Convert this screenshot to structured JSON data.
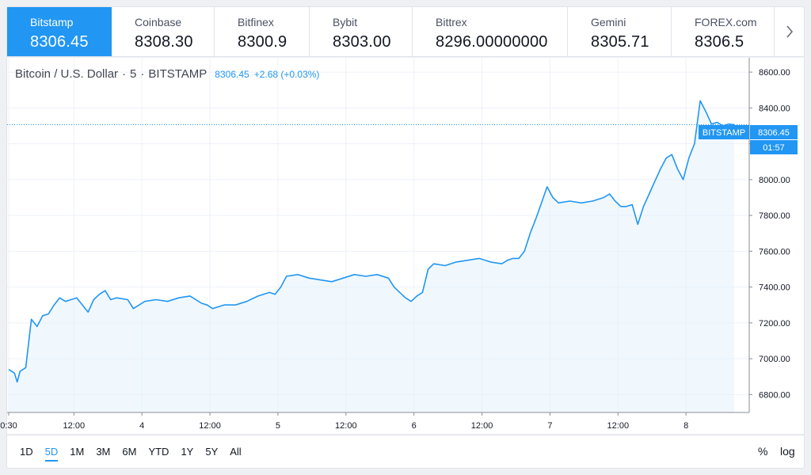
{
  "exchanges": [
    {
      "name": "Bitstamp",
      "price": "8306.45",
      "active": true
    },
    {
      "name": "Coinbase",
      "price": "8308.30",
      "active": false
    },
    {
      "name": "Bitfinex",
      "price": "8300.9",
      "active": false
    },
    {
      "name": "Bybit",
      "price": "8303.00",
      "active": false
    },
    {
      "name": "Bittrex",
      "price": "8296.00000000",
      "active": false
    },
    {
      "name": "Gemini",
      "price": "8305.71",
      "active": false
    },
    {
      "name": "FOREX.com",
      "price": "8306.5",
      "active": false
    }
  ],
  "next_icon": "chevron-right-icon",
  "legend": {
    "symbol": "Bitcoin / U.S. Dollar",
    "interval": "5",
    "exchange": "BITSTAMP",
    "separator": "·",
    "last": "8306.45",
    "change": "+2.68 (+0.03%)"
  },
  "price_label": {
    "exchange": "BITSTAMP",
    "value": "8306.45",
    "countdown": "01:57"
  },
  "range_buttons": [
    {
      "label": "1D",
      "active": false
    },
    {
      "label": "5D",
      "active": true
    },
    {
      "label": "1M",
      "active": false
    },
    {
      "label": "3M",
      "active": false
    },
    {
      "label": "6M",
      "active": false
    },
    {
      "label": "YTD",
      "active": false
    },
    {
      "label": "1Y",
      "active": false
    },
    {
      "label": "5Y",
      "active": false
    },
    {
      "label": "All",
      "active": false
    }
  ],
  "toolbar": {
    "percent_label": "%",
    "log_label": "log"
  },
  "colors": {
    "accent": "#2196f3",
    "line": "#2196f3",
    "area": "#e3f2fd",
    "grid": "#f0f3fa"
  },
  "chart_data": {
    "type": "area",
    "title": "",
    "xlabel": "",
    "ylabel": "",
    "ylim": [
      6700,
      8680
    ],
    "grid": true,
    "y_ticks": [
      "6800.00",
      "7000.00",
      "7200.00",
      "7400.00",
      "7600.00",
      "7800.00",
      "8000.00",
      "8200.00",
      "8400.00",
      "8600.00"
    ],
    "x_ticks": [
      {
        "label": "0:30",
        "t": 0
      },
      {
        "label": "12:00",
        "t": 11.5
      },
      {
        "label": "4",
        "t": 23.5
      },
      {
        "label": "12:00",
        "t": 35.5
      },
      {
        "label": "5",
        "t": 47.5
      },
      {
        "label": "12:00",
        "t": 59.5
      },
      {
        "label": "6",
        "t": 71.5
      },
      {
        "label": "12:00",
        "t": 83.5
      },
      {
        "label": "7",
        "t": 95.5
      },
      {
        "label": "12:00",
        "t": 107.5
      },
      {
        "label": "8",
        "t": 119.5
      }
    ],
    "x_max_t": 128,
    "last_value": 8306.45,
    "series": [
      {
        "values": [
          [
            0,
            6940
          ],
          [
            1,
            6920
          ],
          [
            1.5,
            6870
          ],
          [
            2,
            6930
          ],
          [
            3,
            6950
          ],
          [
            4,
            7220
          ],
          [
            5,
            7180
          ],
          [
            6,
            7240
          ],
          [
            7,
            7250
          ],
          [
            8,
            7300
          ],
          [
            9,
            7340
          ],
          [
            10,
            7320
          ],
          [
            11,
            7330
          ],
          [
            12,
            7340
          ],
          [
            14,
            7260
          ],
          [
            15,
            7330
          ],
          [
            16,
            7360
          ],
          [
            17,
            7380
          ],
          [
            18,
            7330
          ],
          [
            19,
            7340
          ],
          [
            21,
            7330
          ],
          [
            22,
            7280
          ],
          [
            24,
            7320
          ],
          [
            26,
            7330
          ],
          [
            28,
            7320
          ],
          [
            30,
            7340
          ],
          [
            32,
            7350
          ],
          [
            33,
            7330
          ],
          [
            34,
            7310
          ],
          [
            35,
            7300
          ],
          [
            36,
            7280
          ],
          [
            38,
            7300
          ],
          [
            40,
            7300
          ],
          [
            42,
            7320
          ],
          [
            44,
            7350
          ],
          [
            46,
            7370
          ],
          [
            47,
            7360
          ],
          [
            48,
            7400
          ],
          [
            49,
            7460
          ],
          [
            51,
            7470
          ],
          [
            53,
            7450
          ],
          [
            55,
            7440
          ],
          [
            57,
            7430
          ],
          [
            59,
            7450
          ],
          [
            61,
            7470
          ],
          [
            63,
            7460
          ],
          [
            65,
            7470
          ],
          [
            67,
            7450
          ],
          [
            68,
            7400
          ],
          [
            70,
            7340
          ],
          [
            71,
            7320
          ],
          [
            72,
            7350
          ],
          [
            73,
            7370
          ],
          [
            74,
            7500
          ],
          [
            75,
            7530
          ],
          [
            77,
            7520
          ],
          [
            79,
            7540
          ],
          [
            81,
            7550
          ],
          [
            83,
            7560
          ],
          [
            85,
            7540
          ],
          [
            87,
            7530
          ],
          [
            88,
            7550
          ],
          [
            89,
            7560
          ],
          [
            90,
            7560
          ],
          [
            91,
            7600
          ],
          [
            92,
            7700
          ],
          [
            93,
            7780
          ],
          [
            94,
            7870
          ],
          [
            95,
            7960
          ],
          [
            96,
            7900
          ],
          [
            97,
            7870
          ],
          [
            99,
            7880
          ],
          [
            101,
            7870
          ],
          [
            103,
            7880
          ],
          [
            105,
            7900
          ],
          [
            106,
            7920
          ],
          [
            107,
            7880
          ],
          [
            108,
            7850
          ],
          [
            109,
            7850
          ],
          [
            110,
            7860
          ],
          [
            111,
            7750
          ],
          [
            112,
            7850
          ],
          [
            113,
            7920
          ],
          [
            114,
            7990
          ],
          [
            115,
            8060
          ],
          [
            116,
            8120
          ],
          [
            117,
            8140
          ],
          [
            118,
            8060
          ],
          [
            119,
            8000
          ],
          [
            120,
            8120
          ],
          [
            121,
            8200
          ],
          [
            122,
            8440
          ],
          [
            123,
            8380
          ],
          [
            124,
            8310
          ],
          [
            125,
            8320
          ],
          [
            126,
            8300
          ],
          [
            127,
            8310
          ],
          [
            128,
            8306.45
          ]
        ]
      }
    ]
  }
}
